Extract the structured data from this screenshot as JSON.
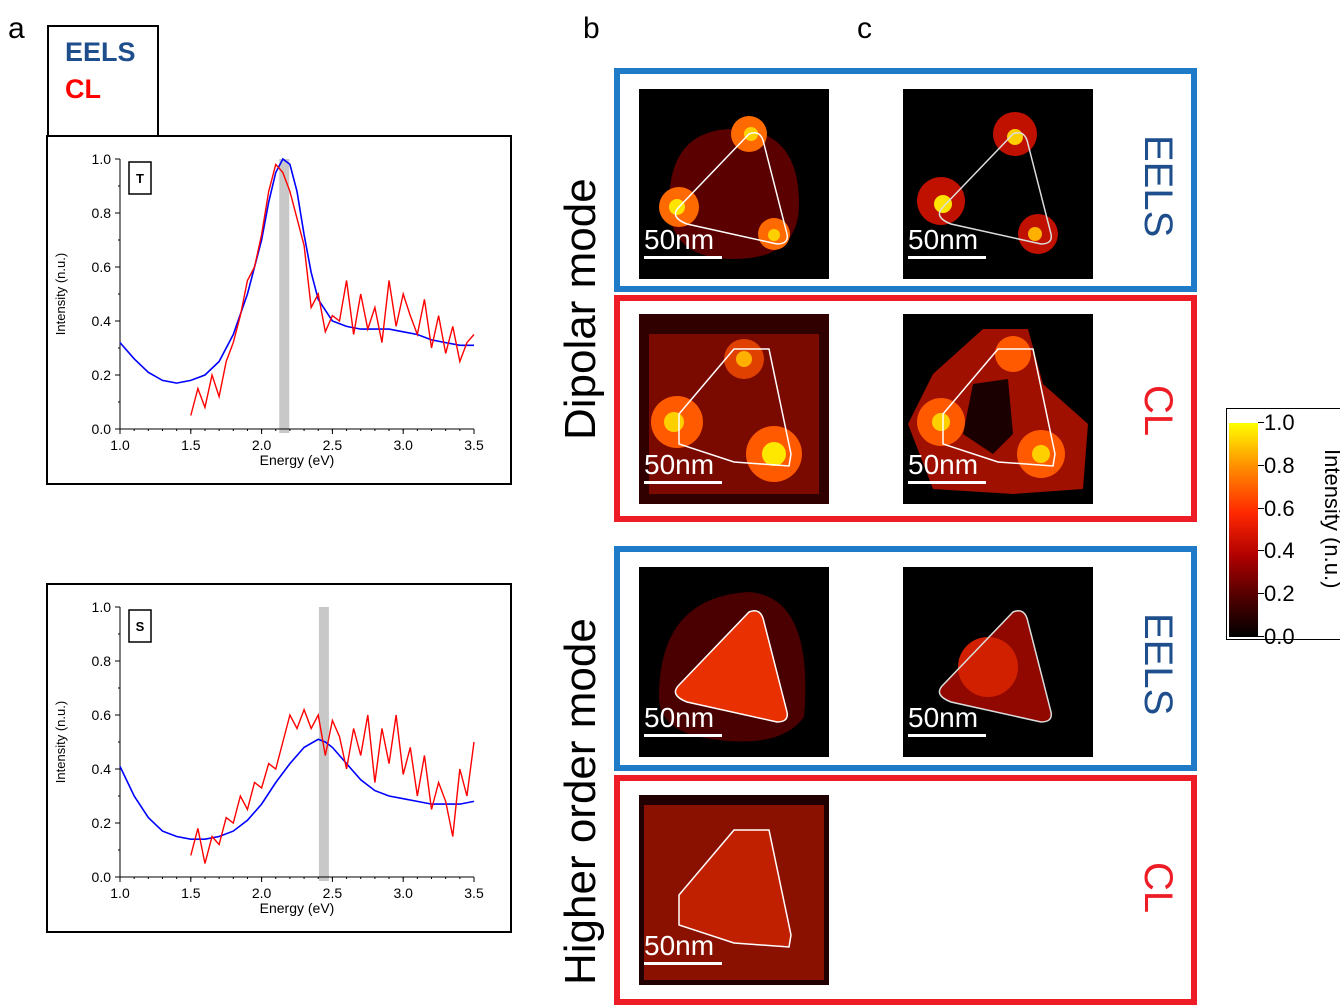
{
  "panel_labels": {
    "a": "a",
    "b": "b",
    "c": "c"
  },
  "legend": {
    "eels": "EELS",
    "cl": "CL",
    "eels_color": "#1f4e8c",
    "cl_color": "#ff0000"
  },
  "row_labels": {
    "dipolar": "Dipolar mode",
    "higher": "Higher order mode"
  },
  "side_labels": {
    "eels": "EELS",
    "cl": "CL"
  },
  "frame_colors": {
    "eels": "#1f7ac8",
    "cl": "#ee1c25"
  },
  "scale_bar": "50nm",
  "colorbar": {
    "ticks": [
      "1.0",
      "0.8",
      "0.6",
      "0.4",
      "0.2",
      "0.0"
    ],
    "label": "Intensity (n.u.)",
    "range": [
      0.0,
      1.0
    ]
  },
  "chart_data": [
    {
      "type": "line",
      "tag": "T",
      "xlabel": "Energy (eV)",
      "ylabel": "Intensity (n.u.)",
      "xlim": [
        1.0,
        3.5
      ],
      "ylim": [
        0.0,
        1.0
      ],
      "xticks": [
        "1.0",
        "1.5",
        "2.0",
        "2.5",
        "3.0",
        "3.5"
      ],
      "yticks": [
        "0.0",
        "0.2",
        "0.4",
        "0.6",
        "0.8",
        "1.0"
      ],
      "highlight_energy": 2.16,
      "series": [
        {
          "color": "#0000ff",
          "x": [
            1.0,
            1.1,
            1.2,
            1.3,
            1.4,
            1.5,
            1.6,
            1.7,
            1.8,
            1.9,
            2.0,
            2.05,
            2.1,
            2.15,
            2.2,
            2.25,
            2.3,
            2.35,
            2.4,
            2.5,
            2.6,
            2.7,
            2.8,
            2.9,
            3.0,
            3.1,
            3.2,
            3.3,
            3.4,
            3.5
          ],
          "y": [
            0.32,
            0.26,
            0.21,
            0.18,
            0.17,
            0.18,
            0.2,
            0.25,
            0.35,
            0.5,
            0.7,
            0.84,
            0.95,
            1.0,
            0.98,
            0.88,
            0.72,
            0.58,
            0.48,
            0.4,
            0.38,
            0.37,
            0.37,
            0.37,
            0.36,
            0.35,
            0.33,
            0.32,
            0.31,
            0.31
          ]
        },
        {
          "color": "#ff0000",
          "x": [
            1.5,
            1.55,
            1.6,
            1.65,
            1.7,
            1.75,
            1.8,
            1.85,
            1.9,
            1.95,
            2.0,
            2.05,
            2.1,
            2.15,
            2.2,
            2.25,
            2.3,
            2.35,
            2.4,
            2.45,
            2.5,
            2.55,
            2.6,
            2.65,
            2.7,
            2.75,
            2.8,
            2.85,
            2.9,
            2.95,
            3.0,
            3.05,
            3.1,
            3.15,
            3.2,
            3.25,
            3.3,
            3.35,
            3.4,
            3.45,
            3.5
          ],
          "y": [
            0.05,
            0.15,
            0.08,
            0.2,
            0.12,
            0.25,
            0.32,
            0.42,
            0.55,
            0.6,
            0.72,
            0.88,
            0.98,
            0.95,
            0.88,
            0.78,
            0.68,
            0.45,
            0.5,
            0.36,
            0.42,
            0.4,
            0.55,
            0.35,
            0.5,
            0.37,
            0.45,
            0.32,
            0.55,
            0.38,
            0.5,
            0.42,
            0.35,
            0.48,
            0.3,
            0.42,
            0.28,
            0.38,
            0.25,
            0.32,
            0.35
          ]
        }
      ]
    },
    {
      "type": "line",
      "tag": "S",
      "xlabel": "Energy (eV)",
      "ylabel": "Intensity (n.u.)",
      "xlim": [
        1.0,
        3.5
      ],
      "ylim": [
        0.0,
        1.0
      ],
      "xticks": [
        "1.0",
        "1.5",
        "2.0",
        "2.5",
        "3.0",
        "3.5"
      ],
      "yticks": [
        "0.0",
        "0.2",
        "0.4",
        "0.6",
        "0.8",
        "1.0"
      ],
      "highlight_energy": 2.44,
      "series": [
        {
          "color": "#0000ff",
          "x": [
            1.0,
            1.1,
            1.2,
            1.3,
            1.4,
            1.5,
            1.6,
            1.7,
            1.8,
            1.9,
            2.0,
            2.1,
            2.2,
            2.3,
            2.4,
            2.45,
            2.5,
            2.6,
            2.7,
            2.8,
            2.9,
            3.0,
            3.1,
            3.2,
            3.3,
            3.4,
            3.5
          ],
          "y": [
            0.41,
            0.3,
            0.22,
            0.17,
            0.15,
            0.14,
            0.14,
            0.15,
            0.17,
            0.21,
            0.27,
            0.35,
            0.42,
            0.48,
            0.51,
            0.5,
            0.48,
            0.42,
            0.36,
            0.32,
            0.3,
            0.29,
            0.28,
            0.27,
            0.27,
            0.27,
            0.28
          ]
        },
        {
          "color": "#ff0000",
          "x": [
            1.5,
            1.55,
            1.6,
            1.65,
            1.7,
            1.75,
            1.8,
            1.85,
            1.9,
            1.95,
            2.0,
            2.05,
            2.1,
            2.15,
            2.2,
            2.25,
            2.3,
            2.35,
            2.4,
            2.45,
            2.5,
            2.55,
            2.6,
            2.65,
            2.7,
            2.75,
            2.8,
            2.85,
            2.9,
            2.95,
            3.0,
            3.05,
            3.1,
            3.15,
            3.2,
            3.25,
            3.3,
            3.35,
            3.4,
            3.45,
            3.5
          ],
          "y": [
            0.08,
            0.18,
            0.05,
            0.15,
            0.12,
            0.22,
            0.2,
            0.3,
            0.25,
            0.35,
            0.33,
            0.42,
            0.4,
            0.5,
            0.6,
            0.55,
            0.62,
            0.55,
            0.6,
            0.45,
            0.58,
            0.52,
            0.4,
            0.55,
            0.45,
            0.6,
            0.35,
            0.55,
            0.42,
            0.6,
            0.38,
            0.48,
            0.3,
            0.45,
            0.25,
            0.35,
            0.28,
            0.15,
            0.4,
            0.3,
            0.5
          ]
        }
      ]
    }
  ]
}
